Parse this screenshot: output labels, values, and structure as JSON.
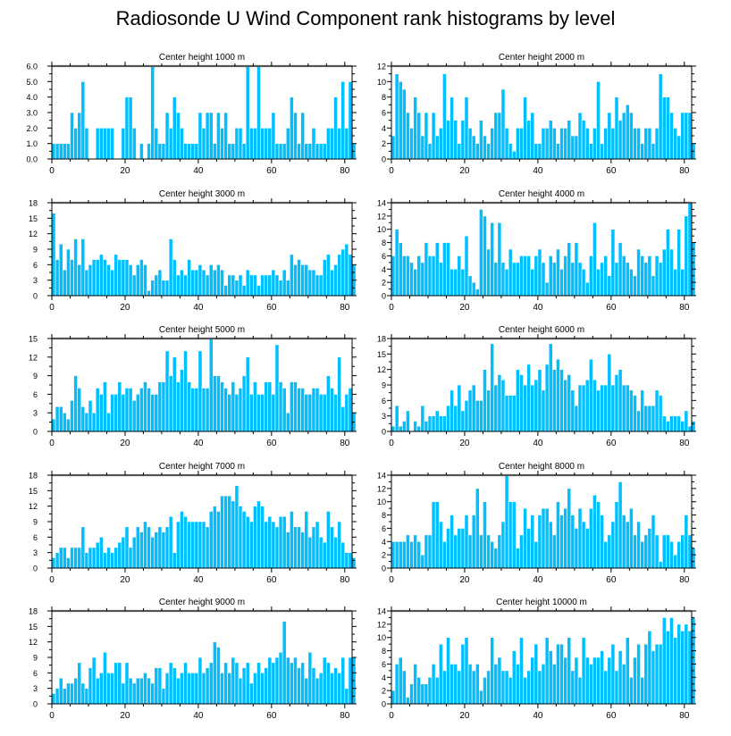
{
  "title": "Radiosonde U Wind Component rank histograms by level",
  "colors": {
    "bar": "#00BFFF",
    "bar_edge": "#ffffff",
    "axis": "#000000",
    "frame_top": "#555555"
  },
  "chart_data": [
    {
      "type": "bar",
      "title": "Center height 1000 m",
      "xlim": [
        0,
        82
      ],
      "ylim": [
        0,
        6
      ],
      "xticks": [
        0,
        20,
        40,
        60,
        80
      ],
      "yticks": [
        0,
        1,
        2,
        3,
        4,
        5,
        6
      ],
      "ytick_labels": [
        "0.0",
        "1.0",
        "2.0",
        "3.0",
        "4.0",
        "5.0",
        "6.0"
      ],
      "yaxis_side": "left",
      "values": [
        1,
        1,
        1,
        1,
        1,
        3,
        2,
        3,
        5,
        2,
        0,
        0,
        2,
        2,
        2,
        2,
        2,
        0,
        0,
        2,
        4,
        4,
        2,
        0,
        1,
        0,
        1,
        6,
        2,
        1,
        1,
        3,
        2,
        4,
        3,
        2,
        1,
        1,
        1,
        1,
        3,
        2,
        3,
        3,
        1,
        3,
        2,
        3,
        1,
        1,
        2,
        2,
        1,
        6,
        2,
        2,
        6,
        2,
        2,
        2,
        3,
        1,
        1,
        1,
        2,
        4,
        3,
        1,
        3,
        1,
        1,
        2,
        1,
        1,
        1,
        2,
        2,
        4,
        2,
        5,
        2,
        5,
        1
      ]
    },
    {
      "type": "bar",
      "title": "Center height 2000 m",
      "xlim": [
        0,
        82
      ],
      "ylim": [
        0,
        12
      ],
      "xticks": [
        0,
        20,
        40,
        60,
        80
      ],
      "yticks": [
        0,
        2,
        4,
        6,
        8,
        10,
        12
      ],
      "ytick_labels": [
        "0",
        "2",
        "4",
        "6",
        "8",
        "10",
        "12"
      ],
      "yaxis_side": "right",
      "values": [
        3,
        11,
        10,
        9,
        6,
        4,
        8,
        6,
        3,
        6,
        2,
        6,
        3,
        4,
        11,
        5,
        8,
        5,
        2,
        5,
        8,
        4,
        3,
        2,
        5,
        3,
        2,
        4,
        6,
        6,
        9,
        4,
        2,
        1,
        4,
        4,
        8,
        5,
        6,
        2,
        2,
        4,
        4,
        5,
        4,
        2,
        4,
        4,
        5,
        3,
        3,
        6,
        5,
        4,
        2,
        4,
        10,
        2,
        4,
        6,
        4,
        8,
        5,
        6,
        7,
        6,
        4,
        4,
        2,
        4,
        4,
        2,
        4,
        11,
        8,
        8,
        6,
        4,
        3,
        6,
        6,
        6,
        2
      ]
    },
    {
      "type": "bar",
      "title": "Center height 3000 m",
      "xlim": [
        0,
        82
      ],
      "ylim": [
        0,
        18
      ],
      "xticks": [
        0,
        20,
        40,
        60,
        80
      ],
      "yticks": [
        0,
        3,
        6,
        9,
        12,
        15,
        18
      ],
      "ytick_labels": [
        "0",
        "3",
        "6",
        "9",
        "12",
        "15",
        "18"
      ],
      "yaxis_side": "left",
      "values": [
        16,
        7,
        10,
        5,
        9,
        7,
        11,
        6,
        11,
        5,
        6,
        7,
        7,
        8,
        7,
        6,
        5,
        8,
        7,
        7,
        7,
        6,
        4,
        6,
        7,
        6,
        1,
        3,
        4,
        5,
        3,
        3,
        11,
        7,
        4,
        5,
        4,
        7,
        5,
        5,
        6,
        5,
        4,
        6,
        5,
        6,
        5,
        2,
        4,
        4,
        3,
        4,
        2,
        5,
        4,
        4,
        2,
        4,
        4,
        4,
        5,
        4,
        3,
        5,
        3,
        8,
        6,
        7,
        6,
        6,
        5,
        5,
        4,
        4,
        7,
        8,
        5,
        6,
        8,
        9,
        10,
        8,
        6
      ]
    },
    {
      "type": "bar",
      "title": "Center height 4000 m",
      "xlim": [
        0,
        82
      ],
      "ylim": [
        0,
        14
      ],
      "xticks": [
        0,
        20,
        40,
        60,
        80
      ],
      "yticks": [
        0,
        2,
        4,
        6,
        8,
        10,
        12,
        14
      ],
      "ytick_labels": [
        "0",
        "2",
        "4",
        "6",
        "8",
        "10",
        "12",
        "14"
      ],
      "yaxis_side": "right",
      "values": [
        6,
        10,
        8,
        6,
        6,
        5,
        4,
        6,
        5,
        8,
        6,
        6,
        8,
        5,
        8,
        8,
        4,
        4,
        6,
        4,
        9,
        3,
        2,
        1,
        13,
        12,
        7,
        11,
        5,
        11,
        5,
        4,
        7,
        5,
        5,
        6,
        6,
        6,
        4,
        6,
        7,
        5,
        2,
        6,
        5,
        7,
        4,
        6,
        8,
        5,
        8,
        5,
        4,
        2,
        6,
        11,
        4,
        5,
        6,
        3,
        10,
        5,
        8,
        6,
        5,
        4,
        3,
        7,
        6,
        5,
        6,
        3,
        6,
        5,
        7,
        10,
        7,
        4,
        10,
        4,
        12,
        14,
        8
      ]
    },
    {
      "type": "bar",
      "title": "Center height 5000 m",
      "xlim": [
        0,
        82
      ],
      "ylim": [
        0,
        15
      ],
      "xticks": [
        0,
        20,
        40,
        60,
        80
      ],
      "yticks": [
        0,
        3,
        6,
        9,
        12,
        15
      ],
      "ytick_labels": [
        "0",
        "3",
        "6",
        "9",
        "12",
        "15"
      ],
      "yaxis_side": "left",
      "values": [
        2,
        4,
        4,
        3,
        2,
        5,
        9,
        7,
        4,
        3,
        5,
        3,
        7,
        6,
        8,
        3,
        6,
        6,
        8,
        6,
        7,
        7,
        5,
        6,
        7,
        8,
        7,
        6,
        6,
        8,
        8,
        13,
        9,
        12,
        8,
        10,
        13,
        8,
        7,
        7,
        13,
        7,
        7,
        15,
        9,
        9,
        8,
        7,
        6,
        8,
        6,
        7,
        9,
        12,
        6,
        8,
        6,
        6,
        8,
        8,
        6,
        14,
        8,
        7,
        3,
        8,
        8,
        7,
        7,
        6,
        6,
        7,
        7,
        6,
        6,
        9,
        7,
        6,
        12,
        4,
        6,
        7,
        3
      ]
    },
    {
      "type": "bar",
      "title": "Center height 6000 m",
      "xlim": [
        0,
        82
      ],
      "ylim": [
        0,
        18
      ],
      "xticks": [
        0,
        20,
        40,
        60,
        80
      ],
      "yticks": [
        0,
        3,
        6,
        9,
        12,
        15,
        18
      ],
      "ytick_labels": [
        "0",
        "3",
        "6",
        "9",
        "12",
        "15",
        "18"
      ],
      "yaxis_side": "right",
      "values": [
        1,
        5,
        1,
        2,
        4,
        0,
        2,
        1,
        5,
        2,
        3,
        3,
        4,
        3,
        3,
        5,
        8,
        5,
        9,
        4,
        6,
        8,
        9,
        6,
        6,
        12,
        8,
        17,
        9,
        11,
        10,
        7,
        7,
        7,
        12,
        11,
        9,
        13,
        9,
        10,
        12,
        8,
        13,
        17,
        12,
        14,
        12,
        10,
        11,
        8,
        5,
        9,
        9,
        10,
        14,
        10,
        8,
        9,
        9,
        15,
        9,
        11,
        12,
        9,
        9,
        8,
        7,
        4,
        8,
        5,
        5,
        5,
        8,
        7,
        3,
        2,
        3,
        3,
        3,
        2,
        4,
        1,
        2
      ]
    },
    {
      "type": "bar",
      "title": "Center height 7000 m",
      "xlim": [
        0,
        82
      ],
      "ylim": [
        0,
        18
      ],
      "xticks": [
        0,
        20,
        40,
        60,
        80
      ],
      "yticks": [
        0,
        3,
        6,
        9,
        12,
        15,
        18
      ],
      "ytick_labels": [
        "0",
        "3",
        "6",
        "9",
        "12",
        "15",
        "18"
      ],
      "yaxis_side": "left",
      "values": [
        2,
        3,
        4,
        4,
        2,
        4,
        4,
        4,
        8,
        3,
        4,
        4,
        5,
        6,
        3,
        4,
        3,
        4,
        5,
        6,
        8,
        4,
        6,
        8,
        7,
        9,
        8,
        6,
        7,
        8,
        7,
        8,
        10,
        3,
        9,
        11,
        10,
        9,
        9,
        9,
        9,
        9,
        8,
        11,
        12,
        11,
        14,
        14,
        14,
        13,
        16,
        12,
        11,
        10,
        9,
        12,
        13,
        12,
        9,
        10,
        9,
        8,
        10,
        10,
        7,
        11,
        8,
        8,
        7,
        11,
        6,
        8,
        9,
        6,
        5,
        11,
        8,
        6,
        9,
        5,
        3,
        3,
        2
      ]
    },
    {
      "type": "bar",
      "title": "Center height 8000 m",
      "xlim": [
        0,
        82
      ],
      "ylim": [
        0,
        14
      ],
      "xticks": [
        0,
        20,
        40,
        60,
        80
      ],
      "yticks": [
        0,
        2,
        4,
        6,
        8,
        10,
        12,
        14
      ],
      "ytick_labels": [
        "0",
        "2",
        "4",
        "6",
        "8",
        "10",
        "12",
        "14"
      ],
      "yaxis_side": "right",
      "values": [
        4,
        4,
        4,
        4,
        5,
        4,
        5,
        4,
        2,
        5,
        5,
        10,
        10,
        7,
        4,
        6,
        8,
        5,
        6,
        6,
        8,
        5,
        8,
        12,
        5,
        10,
        5,
        4,
        3,
        5,
        7,
        14,
        10,
        10,
        3,
        5,
        9,
        6,
        8,
        4,
        8,
        9,
        9,
        7,
        5,
        10,
        8,
        9,
        12,
        8,
        6,
        9,
        7,
        6,
        9,
        11,
        10,
        8,
        4,
        5,
        7,
        10,
        13,
        8,
        7,
        9,
        5,
        7,
        4,
        5,
        6,
        8,
        5,
        1,
        5,
        5,
        4,
        2,
        4,
        5,
        8,
        5,
        3
      ]
    },
    {
      "type": "bar",
      "title": "Center height 9000 m",
      "xlim": [
        0,
        82
      ],
      "ylim": [
        0,
        18
      ],
      "xticks": [
        0,
        20,
        40,
        60,
        80
      ],
      "yticks": [
        0,
        3,
        6,
        9,
        12,
        15,
        18
      ],
      "ytick_labels": [
        "0",
        "3",
        "6",
        "9",
        "12",
        "15",
        "18"
      ],
      "yaxis_side": "left",
      "values": [
        2,
        3,
        5,
        3,
        4,
        4,
        5,
        8,
        4,
        3,
        7,
        9,
        5,
        6,
        10,
        6,
        6,
        8,
        8,
        4,
        8,
        5,
        4,
        5,
        5,
        6,
        5,
        4,
        7,
        7,
        3,
        6,
        8,
        7,
        5,
        6,
        8,
        6,
        6,
        6,
        9,
        6,
        7,
        8,
        12,
        11,
        6,
        8,
        6,
        9,
        8,
        5,
        7,
        8,
        4,
        6,
        8,
        6,
        7,
        9,
        8,
        9,
        10,
        16,
        9,
        8,
        9,
        7,
        8,
        5,
        10,
        7,
        5,
        6,
        9,
        8,
        6,
        7,
        6,
        9,
        3,
        9,
        9
      ]
    },
    {
      "type": "bar",
      "title": "Center height 10000 m",
      "xlim": [
        0,
        82
      ],
      "ylim": [
        0,
        14
      ],
      "xticks": [
        0,
        20,
        40,
        60,
        80
      ],
      "yticks": [
        0,
        2,
        4,
        6,
        8,
        10,
        12,
        14
      ],
      "ytick_labels": [
        "0",
        "2",
        "4",
        "6",
        "8",
        "10",
        "12",
        "14"
      ],
      "yaxis_side": "right",
      "values": [
        2,
        6,
        7,
        5,
        1,
        3,
        6,
        4,
        3,
        3,
        4,
        6,
        4,
        9,
        5,
        10,
        6,
        6,
        5,
        9,
        10,
        6,
        5,
        6,
        2,
        4,
        5,
        10,
        6,
        7,
        5,
        5,
        4,
        8,
        6,
        10,
        4,
        5,
        7,
        9,
        5,
        6,
        10,
        8,
        6,
        9,
        9,
        7,
        10,
        5,
        7,
        4,
        10,
        7,
        6,
        7,
        7,
        8,
        5,
        7,
        9,
        5,
        8,
        6,
        10,
        4,
        7,
        9,
        4,
        9,
        11,
        8,
        9,
        9,
        13,
        11,
        13,
        10,
        12,
        11,
        12,
        11,
        13
      ]
    }
  ]
}
